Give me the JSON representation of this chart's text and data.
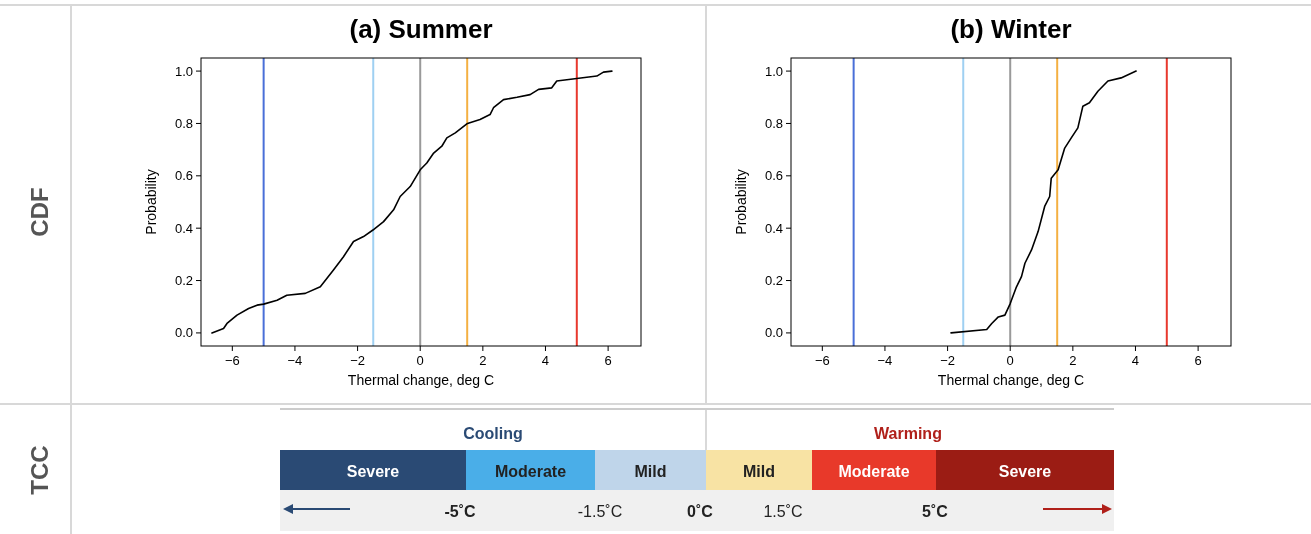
{
  "chart_data": [
    {
      "type": "line",
      "title": "(a) Summer",
      "xlabel": "Thermal change, deg C",
      "ylabel": "Probability",
      "annotations": [
        "CDF"
      ],
      "xlim": [
        -7,
        7.05
      ],
      "ylim": [
        -0.05,
        1.05
      ],
      "xticks": [
        {
          "value": -6,
          "label": "−6"
        },
        {
          "value": -4,
          "label": "−4"
        },
        {
          "value": -2,
          "label": "−2"
        },
        0,
        2,
        4,
        6
      ],
      "yticks": [
        {
          "value": 0,
          "label": "0.0"
        },
        {
          "value": 0.2,
          "label": "0.2"
        },
        {
          "value": 0.4,
          "label": "0.4"
        },
        {
          "value": 0.6,
          "label": "0.6"
        },
        {
          "value": 0.8,
          "label": "0.8"
        },
        {
          "value": 1,
          "label": "1.0"
        }
      ],
      "ref_lines": [
        {
          "axis": "x",
          "value": -5,
          "color": "#4a6fd8"
        },
        {
          "axis": "x",
          "value": -1.5,
          "color": "#9fd0f2"
        },
        {
          "axis": "x",
          "value": 0,
          "color": "#9a9a9a"
        },
        {
          "axis": "x",
          "value": 1.5,
          "color": "#f4b042"
        },
        {
          "axis": "x",
          "value": 5,
          "color": "#e8392e"
        }
      ],
      "series": [
        {
          "color": "#000000",
          "x": [
            -6.65,
            -6.28,
            -6.17,
            -5.85,
            -5.48,
            -5.21,
            -5.0,
            -4.57,
            -4.26,
            -3.67,
            -3.19,
            -2.77,
            -2.45,
            -2.13,
            -1.81,
            -1.51,
            -1.17,
            -0.85,
            -0.64,
            -0.32,
            0,
            0.21,
            0.43,
            0.69,
            0.85,
            1.12,
            1.51,
            1.91,
            2.23,
            2.34,
            2.66,
            3.09,
            3.51,
            3.78,
            4.2,
            4.36,
            5.0,
            5.64,
            5.85,
            6.12
          ],
          "values": [
            0,
            0.017,
            0.036,
            0.068,
            0.093,
            0.106,
            0.11,
            0.125,
            0.144,
            0.151,
            0.176,
            0.24,
            0.291,
            0.349,
            0.368,
            0.393,
            0.425,
            0.47,
            0.521,
            0.559,
            0.623,
            0.649,
            0.687,
            0.713,
            0.745,
            0.764,
            0.8,
            0.815,
            0.834,
            0.86,
            0.891,
            0.9,
            0.91,
            0.93,
            0.936,
            0.962,
            0.972,
            0.981,
            0.996,
            1.0
          ]
        }
      ]
    },
    {
      "type": "line",
      "title": "(b) Winter",
      "xlabel": "Thermal change, deg C",
      "ylabel": "Probability",
      "xlim": [
        -7,
        7.05
      ],
      "ylim": [
        -0.05,
        1.05
      ],
      "xticks": [
        {
          "value": -6,
          "label": "−6"
        },
        {
          "value": -4,
          "label": "−4"
        },
        {
          "value": -2,
          "label": "−2"
        },
        0,
        2,
        4,
        6
      ],
      "yticks": [
        {
          "value": 0,
          "label": "0.0"
        },
        {
          "value": 0.2,
          "label": "0.2"
        },
        {
          "value": 0.4,
          "label": "0.4"
        },
        {
          "value": 0.6,
          "label": "0.6"
        },
        {
          "value": 0.8,
          "label": "0.8"
        },
        {
          "value": 1,
          "label": "1.0"
        }
      ],
      "ref_lines": [
        {
          "axis": "x",
          "value": -5,
          "color": "#4a6fd8"
        },
        {
          "axis": "x",
          "value": -1.5,
          "color": "#9fd0f2"
        },
        {
          "axis": "x",
          "value": 0,
          "color": "#9a9a9a"
        },
        {
          "axis": "x",
          "value": 1.5,
          "color": "#f4b042"
        },
        {
          "axis": "x",
          "value": 5,
          "color": "#e8392e"
        }
      ],
      "series": [
        {
          "color": "#000000",
          "x": [
            -1.89,
            -0.75,
            -0.59,
            -0.38,
            -0.17,
            0,
            0.2,
            0.36,
            0.47,
            0.68,
            0.89,
            1.1,
            1.26,
            1.31,
            1.53,
            1.74,
            1.95,
            2.16,
            2.32,
            2.53,
            2.8,
            3.12,
            3.54,
            4.02
          ],
          "values": [
            0,
            0.013,
            0.036,
            0.061,
            0.068,
            0.112,
            0.176,
            0.215,
            0.266,
            0.317,
            0.387,
            0.483,
            0.521,
            0.591,
            0.623,
            0.706,
            0.745,
            0.783,
            0.866,
            0.879,
            0.923,
            0.962,
            0.974,
            1.0
          ]
        }
      ]
    },
    {
      "type": "other",
      "title": "TCC",
      "categories": [
        "Severe",
        "Moderate",
        "Mild",
        "Mild",
        "Moderate",
        "Severe"
      ],
      "colors": [
        "#2a4a74",
        "#4aaee8",
        "#bfd5ea",
        "#f8e3a4",
        "#e8392a",
        "#9b1c14"
      ],
      "annotations": [
        "Cooling",
        "Warming",
        "-5˚C",
        "-1.5˚C",
        "0˚C",
        "1.5˚C",
        "5˚C"
      ]
    }
  ]
}
